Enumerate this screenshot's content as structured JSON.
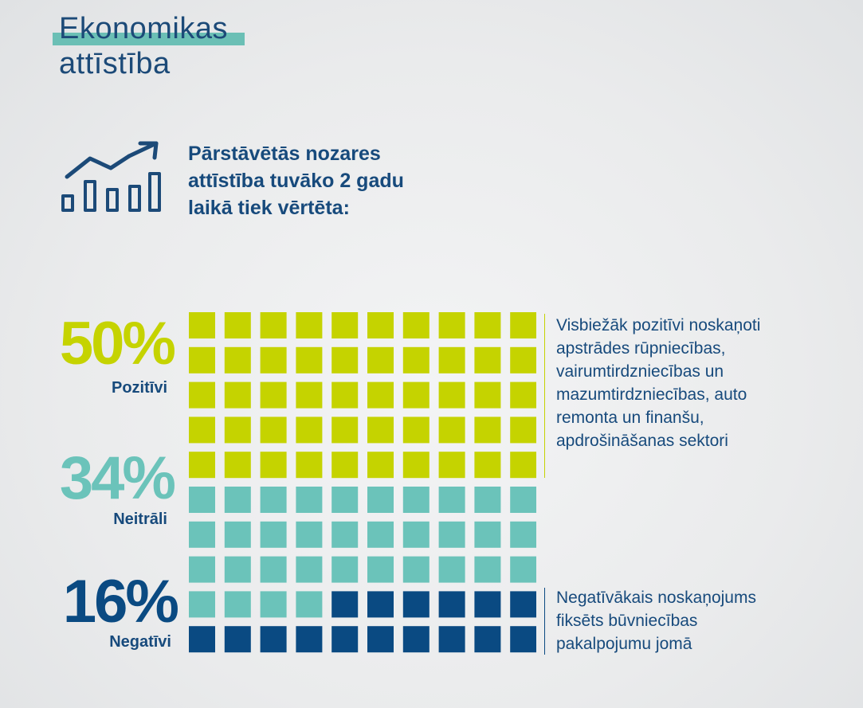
{
  "title": {
    "line1": "Ekonomikas",
    "line2": "attīstība"
  },
  "icon": "bar-chart-trend-up-icon",
  "question": {
    "line1": "Pārstāvētās nozares",
    "line2": "attīstība tuvāko 2 gadu",
    "line3": "laikā tiek vērtēta:"
  },
  "colors": {
    "positive": "#c5d300",
    "neutral": "#6bc3ba",
    "negative": "#0a4a82",
    "text": "#174a7c"
  },
  "chart_data": {
    "type": "waffle",
    "grid": {
      "rows": 10,
      "cols": 10
    },
    "categories": [
      "Pozitīvi",
      "Neitrāli",
      "Negatīvi"
    ],
    "values": [
      50,
      34,
      16
    ],
    "labels": [
      "50%",
      "34%",
      "16%"
    ]
  },
  "notes": {
    "positive": [
      "Visbiežāk pozitīvi noskaņoti",
      "apstrādes rūpniecības,",
      "vairumtirdzniecības un",
      "mazumtirdzniecības, auto",
      "remonta un finanšu,",
      "apdrošināšanas sektori"
    ],
    "negative": [
      "Negatīvākais noskaņojums",
      "fiksēts būvniecības",
      "pakalpojumu jomā"
    ]
  }
}
